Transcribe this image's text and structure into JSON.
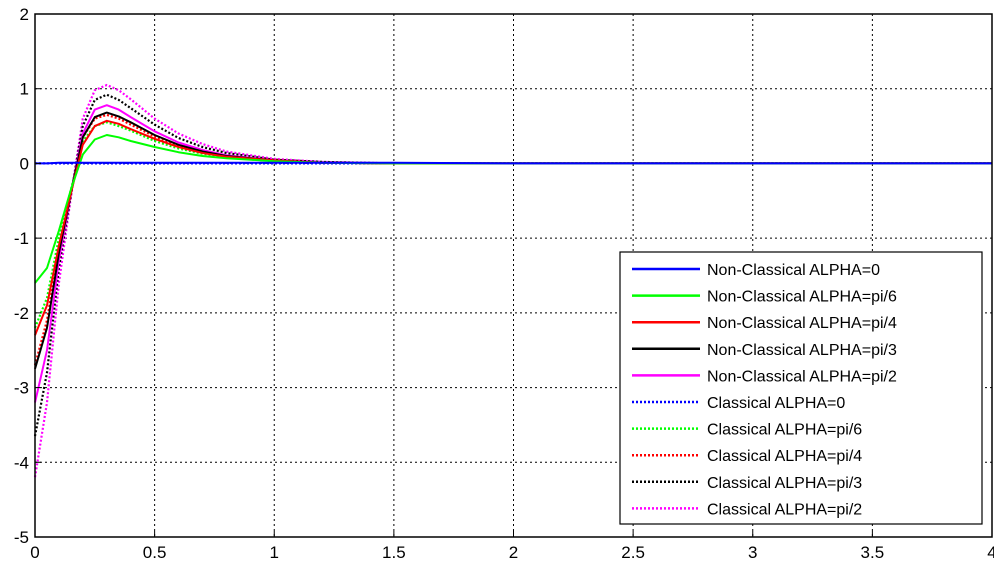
{
  "chart_data": {
    "type": "line",
    "title": "",
    "xlabel": "",
    "ylabel": "",
    "xlim": [
      0,
      4
    ],
    "ylim": [
      -5,
      2
    ],
    "xticks": [
      0,
      0.5,
      1,
      1.5,
      2,
      2.5,
      3,
      3.5,
      4
    ],
    "xtick_labels": [
      "0",
      "0.5",
      "1",
      "1.5",
      "2",
      "2.5",
      "3",
      "3.5",
      "4"
    ],
    "yticks": [
      -5,
      -4,
      -3,
      -2,
      -1,
      0,
      1,
      2
    ],
    "ytick_labels": [
      "-5",
      "-4",
      "-3",
      "-2",
      "-1",
      "0",
      "1",
      "2"
    ],
    "grid": true,
    "legend_position": "bottom-right",
    "x": [
      0,
      0.05,
      0.1,
      0.15,
      0.2,
      0.25,
      0.3,
      0.35,
      0.4,
      0.5,
      0.6,
      0.7,
      0.8,
      1.0,
      1.2,
      1.5,
      2.0,
      2.5,
      3.0,
      3.5,
      4.0
    ],
    "series": [
      {
        "name": "Non-Classical ALPHA=0",
        "color": "#0000ff",
        "style": "solid",
        "values": [
          0,
          0,
          0.01,
          0.01,
          0.01,
          0.01,
          0.01,
          0.01,
          0.01,
          0.01,
          0.01,
          0.01,
          0.01,
          0.01,
          0.01,
          0.01,
          0,
          0,
          0,
          0,
          0
        ]
      },
      {
        "name": "Non-Classical ALPHA=pi/6",
        "color": "#00ff00",
        "style": "solid",
        "values": [
          -1.6,
          -1.4,
          -0.9,
          -0.35,
          0.12,
          0.32,
          0.38,
          0.35,
          0.3,
          0.22,
          0.15,
          0.1,
          0.07,
          0.03,
          0.01,
          0,
          0,
          0,
          0,
          0,
          0
        ]
      },
      {
        "name": "Non-Classical ALPHA=pi/4",
        "color": "#ff0000",
        "style": "solid",
        "values": [
          -2.3,
          -1.9,
          -1.1,
          -0.4,
          0.25,
          0.5,
          0.57,
          0.53,
          0.46,
          0.33,
          0.22,
          0.14,
          0.09,
          0.04,
          0.01,
          0,
          0,
          0,
          0,
          0,
          0
        ]
      },
      {
        "name": "Non-Classical ALPHA=pi/3",
        "color": "#000000",
        "style": "solid",
        "values": [
          -2.75,
          -2.2,
          -1.2,
          -0.4,
          0.35,
          0.62,
          0.68,
          0.63,
          0.55,
          0.38,
          0.25,
          0.16,
          0.1,
          0.04,
          0.01,
          0,
          0,
          0,
          0,
          0,
          0
        ]
      },
      {
        "name": "Non-Classical ALPHA=pi/2",
        "color": "#ff00ff",
        "style": "solid",
        "values": [
          -3.2,
          -2.5,
          -1.3,
          -0.4,
          0.4,
          0.72,
          0.78,
          0.72,
          0.62,
          0.43,
          0.28,
          0.18,
          0.11,
          0.04,
          0.01,
          0,
          0,
          0,
          0,
          0,
          0
        ]
      },
      {
        "name": "Classical ALPHA=0",
        "color": "#0000ff",
        "style": "dotted",
        "values": [
          0,
          0,
          0,
          0,
          0,
          0,
          0,
          0,
          0,
          0,
          0,
          0,
          0,
          0,
          0,
          0,
          0,
          0,
          0,
          0,
          0
        ]
      },
      {
        "name": "Classical ALPHA=pi/6",
        "color": "#00ff00",
        "style": "dotted",
        "values": [
          -2.2,
          -1.8,
          -1.0,
          -0.35,
          0.3,
          0.5,
          0.55,
          0.5,
          0.44,
          0.3,
          0.2,
          0.13,
          0.08,
          0.03,
          0.01,
          0,
          0,
          0,
          0,
          0,
          0
        ]
      },
      {
        "name": "Classical ALPHA=pi/4",
        "color": "#ff0000",
        "style": "dotted",
        "values": [
          -2.7,
          -2.1,
          -1.15,
          -0.38,
          0.35,
          0.6,
          0.65,
          0.6,
          0.52,
          0.36,
          0.24,
          0.15,
          0.1,
          0.04,
          0.01,
          0,
          0,
          0,
          0,
          0,
          0
        ]
      },
      {
        "name": "Classical ALPHA=pi/3",
        "color": "#000000",
        "style": "dotted",
        "values": [
          -3.65,
          -2.8,
          -1.4,
          -0.42,
          0.5,
          0.85,
          0.92,
          0.85,
          0.74,
          0.52,
          0.34,
          0.22,
          0.14,
          0.05,
          0.02,
          0,
          0,
          0,
          0,
          0,
          0
        ]
      },
      {
        "name": "Classical ALPHA=pi/2",
        "color": "#ff00ff",
        "style": "dotted",
        "values": [
          -4.2,
          -3.2,
          -1.6,
          -0.45,
          0.6,
          0.98,
          1.05,
          0.98,
          0.86,
          0.6,
          0.4,
          0.26,
          0.16,
          0.06,
          0.02,
          0,
          0,
          0,
          0,
          0,
          0
        ]
      }
    ]
  }
}
